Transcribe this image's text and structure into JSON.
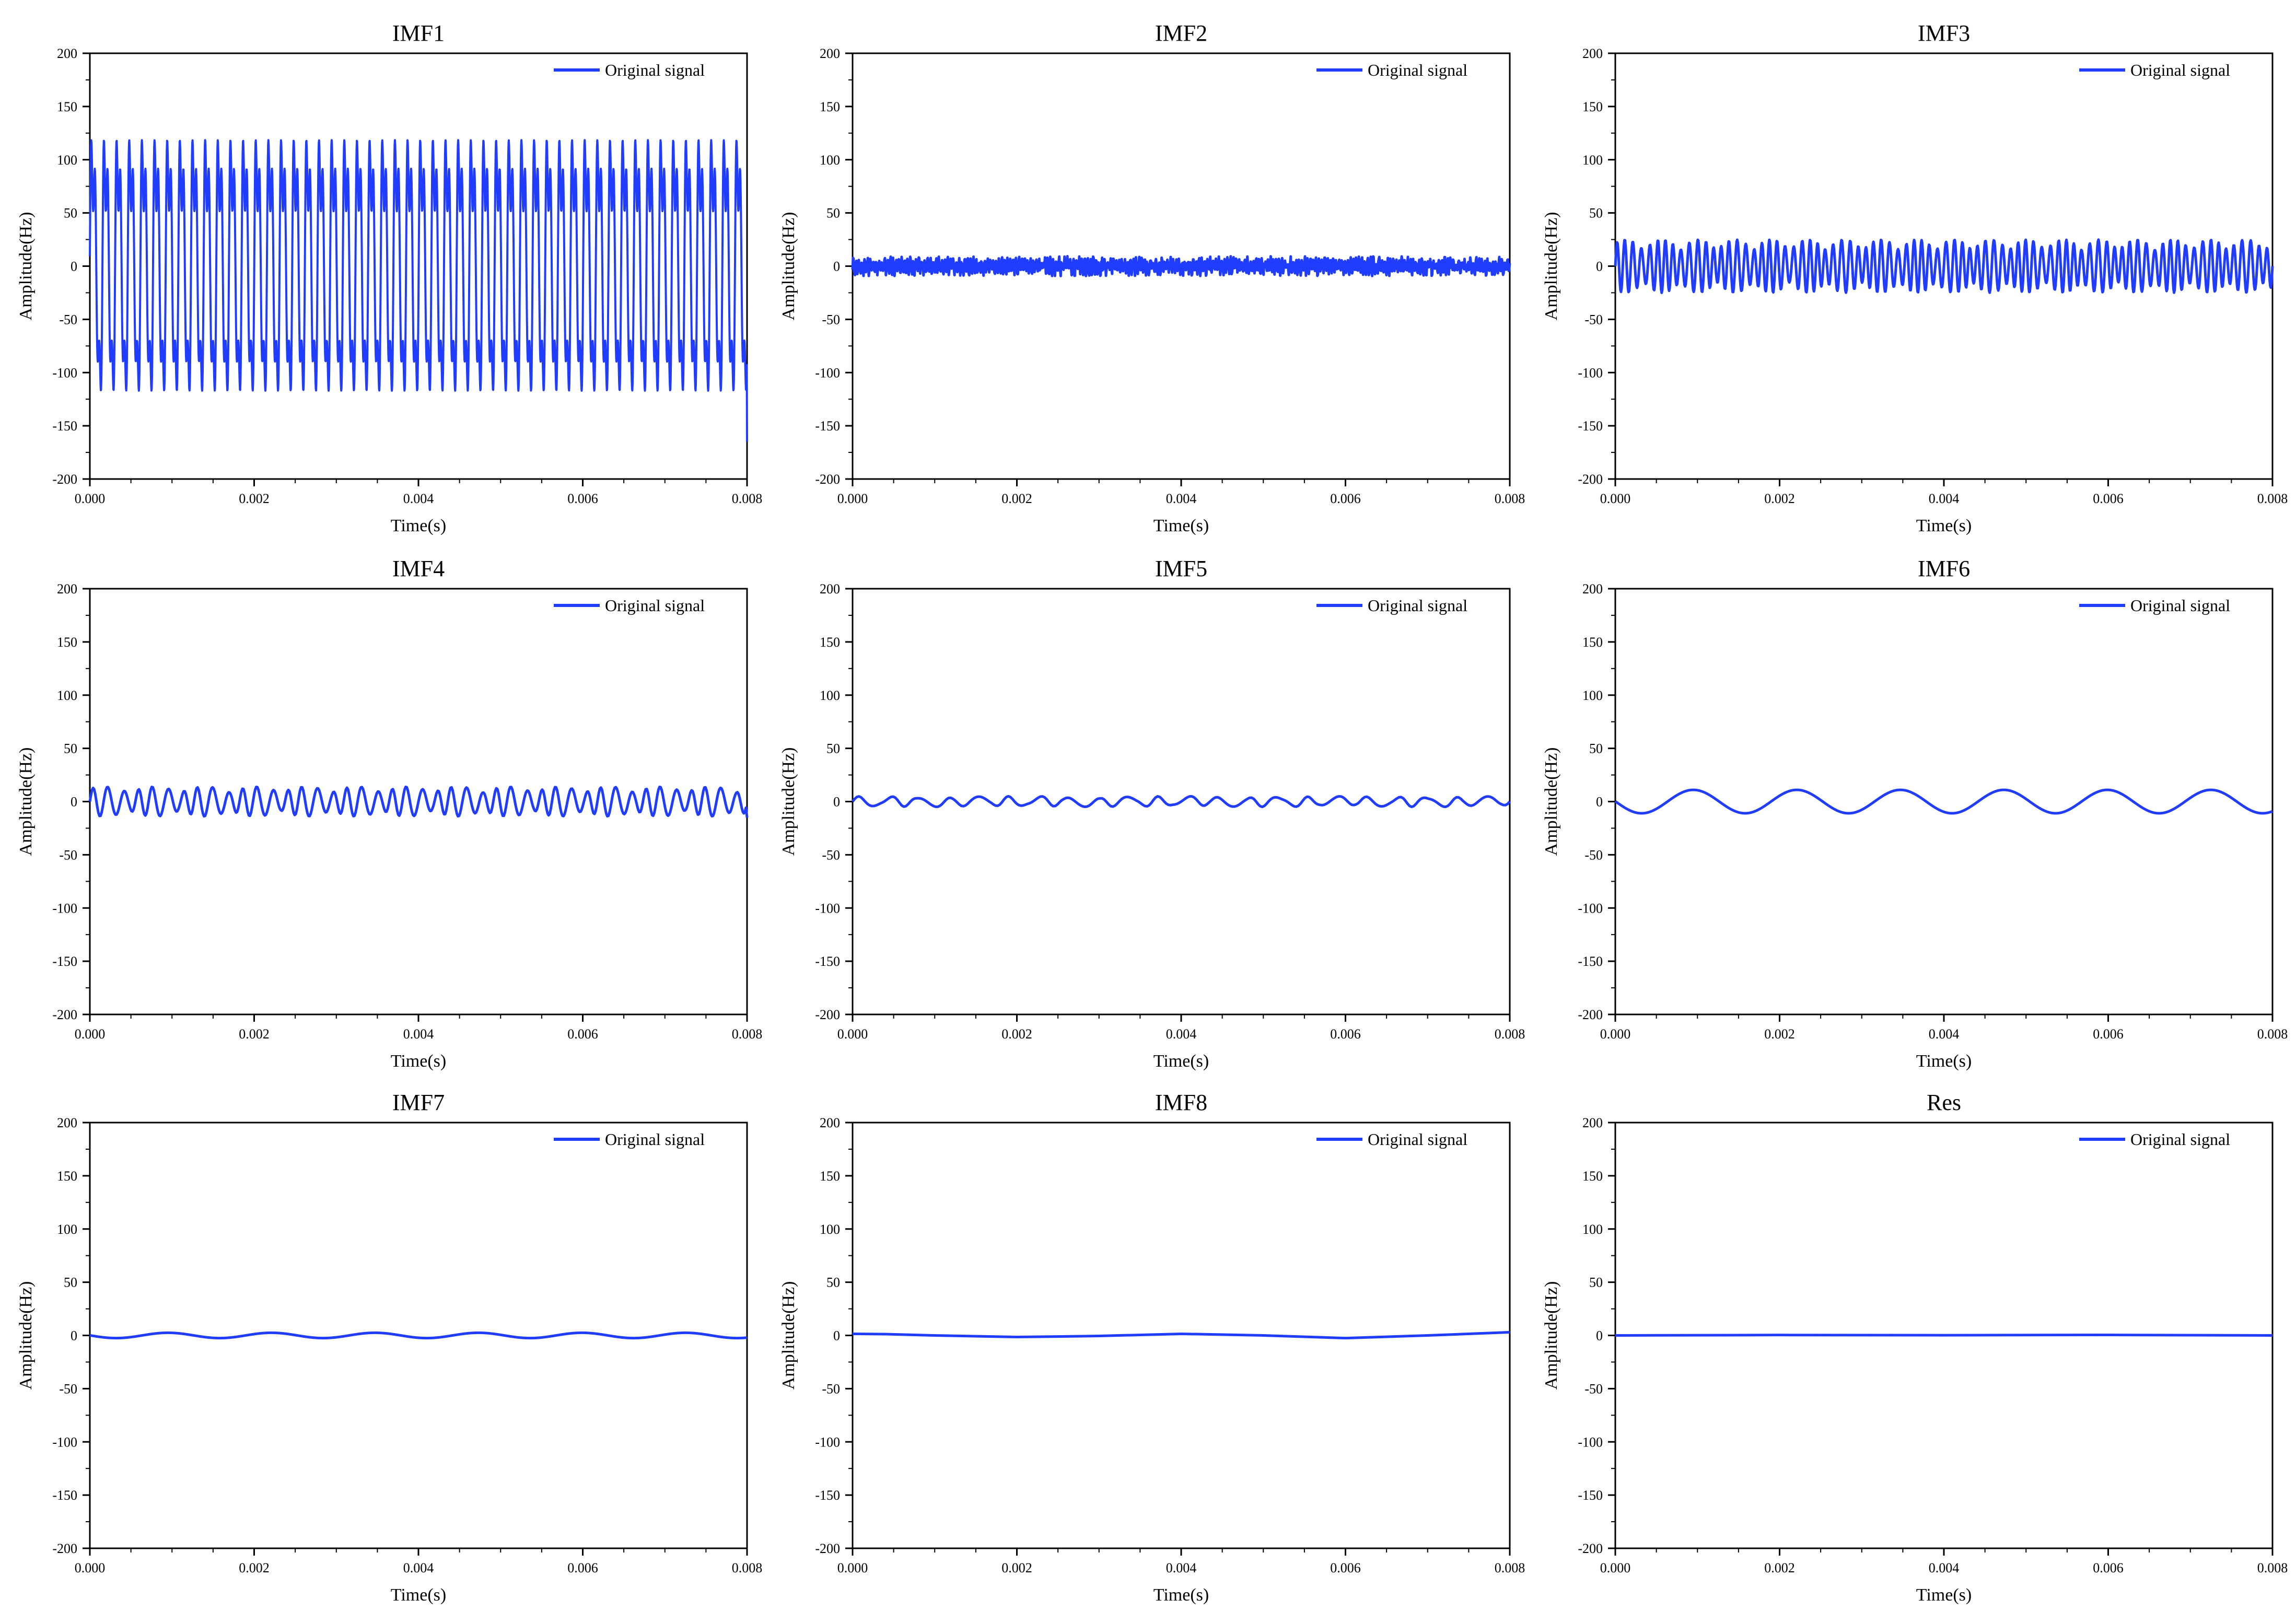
{
  "figure": {
    "background": "#ffffff",
    "series_color": "#1f3cff",
    "axis_color": "#000000"
  },
  "chart_data": [
    {
      "type": "line",
      "title": "IMF1",
      "xlabel": "Time(s)",
      "ylabel": "Amplitude(Hz)",
      "xlim": [
        0,
        0.008
      ],
      "ylim": [
        -200,
        200
      ],
      "x_ticks": [
        "0.000",
        "0.002",
        "0.004",
        "0.006",
        "0.008"
      ],
      "y_ticks": [
        "200",
        "150",
        "100",
        "50",
        "0",
        "-50",
        "-100",
        "-150",
        "-200"
      ],
      "grid": false,
      "legend_position": "top-right",
      "series": [
        {
          "name": "Original signal",
          "color": "#1f3cff",
          "description_of_shape": "high-frequency periodic oscillation",
          "period_s": 0.000154,
          "peak_amplitude": 160,
          "mean": 0,
          "intermediate_level": 45,
          "sample_values_at_0.0001s_step": [
            0,
            155,
            -150,
            45,
            160,
            -155,
            40,
            158,
            -152,
            42,
            160,
            -158,
            44,
            157,
            -150,
            40,
            161,
            -156,
            45,
            158,
            -153,
            42,
            160,
            -157,
            43,
            158,
            -151,
            41,
            161,
            -155,
            44,
            158,
            -152,
            40,
            160,
            -157,
            43,
            159,
            -150,
            45,
            160,
            -156,
            42,
            158,
            -153,
            41,
            160,
            -158,
            44,
            157,
            -151,
            40,
            161,
            -155,
            45,
            158,
            -153,
            42,
            160,
            -157,
            43,
            158,
            -150,
            41,
            161,
            -156,
            44,
            158,
            -152,
            40,
            160,
            -157,
            43,
            159,
            -151,
            45,
            160,
            -155,
            42,
            158,
            -165
          ]
        }
      ]
    },
    {
      "type": "line",
      "title": "IMF2",
      "xlabel": "Time(s)",
      "ylabel": "Amplitude(Hz)",
      "xlim": [
        0,
        0.008
      ],
      "ylim": [
        -200,
        200
      ],
      "x_ticks": [
        "0.000",
        "0.002",
        "0.004",
        "0.006",
        "0.008"
      ],
      "y_ticks": [
        "200",
        "150",
        "100",
        "50",
        "0",
        "-50",
        "-100",
        "-150",
        "-200"
      ],
      "grid": false,
      "legend_position": "top-right",
      "series": [
        {
          "name": "Original signal",
          "color": "#1f3cff",
          "description_of_shape": "dense low-amplitude noise",
          "peak_amplitude": 10,
          "mean": 0,
          "approx_cycles": 230
        }
      ]
    },
    {
      "type": "line",
      "title": "IMF3",
      "xlabel": "Time(s)",
      "ylabel": "Amplitude(Hz)",
      "xlim": [
        0,
        0.008
      ],
      "ylim": [
        -200,
        200
      ],
      "x_ticks": [
        "0.000",
        "0.002",
        "0.004",
        "0.006",
        "0.008"
      ],
      "y_ticks": [
        "200",
        "150",
        "100",
        "50",
        "0",
        "-50",
        "-100",
        "-150",
        "-200"
      ],
      "grid": false,
      "legend_position": "top-right",
      "series": [
        {
          "name": "Original signal",
          "color": "#1f3cff",
          "description_of_shape": "oscillation with varying amplitude",
          "peak_amplitude": 25,
          "mean": 0,
          "approx_cycles": 82
        }
      ]
    },
    {
      "type": "line",
      "title": "IMF4",
      "xlabel": "Time(s)",
      "ylabel": "Amplitude(Hz)",
      "xlim": [
        0,
        0.008
      ],
      "ylim": [
        -200,
        200
      ],
      "x_ticks": [
        "0.000",
        "0.002",
        "0.004",
        "0.006",
        "0.008"
      ],
      "y_ticks": [
        "200",
        "150",
        "100",
        "50",
        "0",
        "-50",
        "-100",
        "-150",
        "-200"
      ],
      "grid": false,
      "legend_position": "top-right",
      "series": [
        {
          "name": "Original signal",
          "color": "#1f3cff",
          "description_of_shape": "modulated oscillation",
          "peak_amplitude": 14,
          "mean": 0,
          "approx_cycles": 44,
          "end_value": -15
        }
      ]
    },
    {
      "type": "line",
      "title": "IMF5",
      "xlabel": "Time(s)",
      "ylabel": "Amplitude(Hz)",
      "xlim": [
        0,
        0.008
      ],
      "ylim": [
        -200,
        200
      ],
      "x_ticks": [
        "0.000",
        "0.002",
        "0.004",
        "0.006",
        "0.008"
      ],
      "y_ticks": [
        "200",
        "150",
        "100",
        "50",
        "0",
        "-50",
        "-100",
        "-150",
        "-200"
      ],
      "grid": false,
      "legend_position": "top-right",
      "series": [
        {
          "name": "Original signal",
          "color": "#1f3cff",
          "description_of_shape": "small oscillation",
          "peak_amplitude": 5,
          "mean": 0,
          "approx_cycles": 22
        }
      ]
    },
    {
      "type": "line",
      "title": "IMF6",
      "xlabel": "Time(s)",
      "ylabel": "Amplitude(Hz)",
      "xlim": [
        0,
        0.008
      ],
      "ylim": [
        -200,
        200
      ],
      "x_ticks": [
        "0.000",
        "0.002",
        "0.004",
        "0.006",
        "0.008"
      ],
      "y_ticks": [
        "200",
        "150",
        "100",
        "50",
        "0",
        "-50",
        "-100",
        "-150",
        "-200"
      ],
      "grid": false,
      "legend_position": "top-right",
      "series": [
        {
          "name": "Original signal",
          "color": "#1f3cff",
          "description_of_shape": "smooth sinusoid",
          "peak_amplitude": 11,
          "mean": 0,
          "period_s": 0.00126,
          "start_value": 0,
          "first_peak_x": 0.00095
        }
      ]
    },
    {
      "type": "line",
      "title": "IMF7",
      "xlabel": "Time(s)",
      "ylabel": "Amplitude(Hz)",
      "xlim": [
        0,
        0.008
      ],
      "ylim": [
        -200,
        200
      ],
      "x_ticks": [
        "0.000",
        "0.002",
        "0.004",
        "0.006",
        "0.008"
      ],
      "y_ticks": [
        "200",
        "150",
        "100",
        "50",
        "0",
        "-50",
        "-100",
        "-150",
        "-200"
      ],
      "grid": false,
      "legend_position": "top-right",
      "series": [
        {
          "name": "Original signal",
          "color": "#1f3cff",
          "description_of_shape": "smooth sinusoid",
          "peak_amplitude": 2.5,
          "mean": 0,
          "period_s": 0.00126,
          "first_peak_x": 0.00095
        }
      ]
    },
    {
      "type": "line",
      "title": "IMF8",
      "xlabel": "Time(s)",
      "ylabel": "Amplitude(Hz)",
      "xlim": [
        0,
        0.008
      ],
      "ylim": [
        -200,
        200
      ],
      "x_ticks": [
        "0.000",
        "0.002",
        "0.004",
        "0.006",
        "0.008"
      ],
      "y_ticks": [
        "200",
        "150",
        "100",
        "50",
        "0",
        "-50",
        "-100",
        "-150",
        "-200"
      ],
      "grid": false,
      "legend_position": "top-right",
      "series": [
        {
          "name": "Original signal",
          "color": "#1f3cff",
          "description_of_shape": "slow wave",
          "points": [
            [
              0,
              1.5
            ],
            [
              0.0004,
              1.2
            ],
            [
              0.001,
              0
            ],
            [
              0.002,
              -1.5
            ],
            [
              0.003,
              -0.5
            ],
            [
              0.004,
              1.5
            ],
            [
              0.005,
              0
            ],
            [
              0.006,
              -2.5
            ],
            [
              0.007,
              0
            ],
            [
              0.008,
              3
            ]
          ]
        }
      ]
    },
    {
      "type": "line",
      "title": "Res",
      "xlabel": "Time(s)",
      "ylabel": "Amplitude(Hz)",
      "xlim": [
        0,
        0.008
      ],
      "ylim": [
        -200,
        200
      ],
      "x_ticks": [
        "0.000",
        "0.002",
        "0.004",
        "0.006",
        "0.008"
      ],
      "y_ticks": [
        "200",
        "150",
        "100",
        "50",
        "0",
        "-50",
        "-100",
        "-150",
        "-200"
      ],
      "grid": false,
      "legend_position": "top-right",
      "series": [
        {
          "name": "Original signal",
          "color": "#1f3cff",
          "description_of_shape": "nearly flat residual",
          "points": [
            [
              0,
              0
            ],
            [
              0.002,
              0.4
            ],
            [
              0.004,
              0.2
            ],
            [
              0.006,
              0.5
            ],
            [
              0.008,
              0
            ]
          ]
        }
      ]
    }
  ]
}
